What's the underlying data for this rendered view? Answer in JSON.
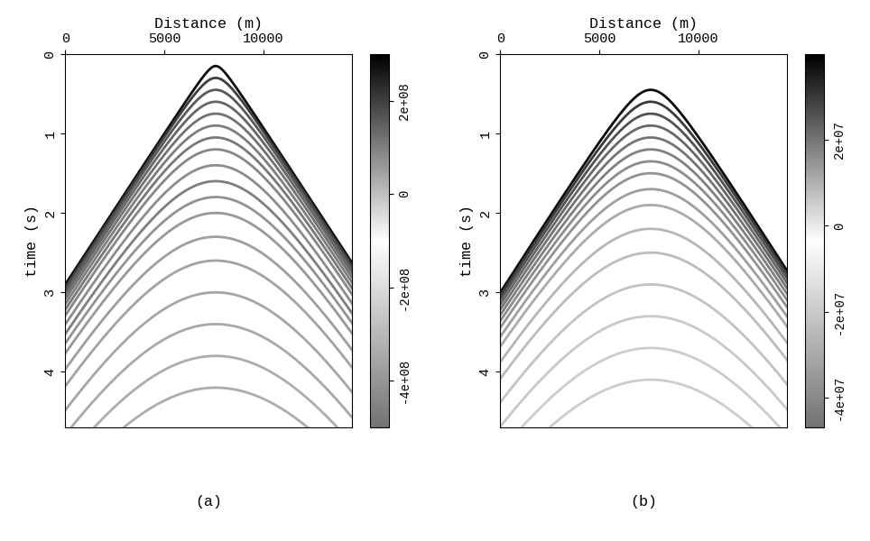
{
  "chart_data": [
    {
      "type": "hyperbola",
      "title": "(a)",
      "x_label": "Distance (m)",
      "y_label": "time (s)",
      "xlim": [
        0,
        14500
      ],
      "xticks": [
        0,
        5000,
        10000
      ],
      "ylim": [
        4.7,
        0
      ],
      "yticks": [
        0,
        1,
        2,
        3,
        4
      ],
      "source_x": 7600,
      "colorbar": {
        "range": [
          -500000000.0,
          300000000.0
        ],
        "ticks": [
          {
            "value": 200000000.0,
            "label": "2e+08"
          },
          0,
          {
            "value": -200000000.0,
            "label": "-2e+08"
          },
          {
            "value": -400000000.0,
            "label": "-4e+08"
          }
        ]
      },
      "events": [
        {
          "t0": 0.15,
          "velocity": 2624,
          "amplitude": 280000000.0
        },
        {
          "t0": 0.3,
          "velocity": 2600,
          "amplitude": 200000000.0
        },
        {
          "t0": 0.45,
          "velocity": 2580,
          "amplitude": 160000000.0
        },
        {
          "t0": 0.6,
          "velocity": 2560,
          "amplitude": 140000000.0
        },
        {
          "t0": 0.75,
          "velocity": 2540,
          "amplitude": 120000000.0
        },
        {
          "t0": 0.9,
          "velocity": 2520,
          "amplitude": 100000000.0
        },
        {
          "t0": 1.05,
          "velocity": 2500,
          "amplitude": 110000000.0
        },
        {
          "t0": 1.2,
          "velocity": 2480,
          "amplitude": 90000000.0
        },
        {
          "t0": 1.4,
          "velocity": 2450,
          "amplitude": 80000000.0
        },
        {
          "t0": 1.6,
          "velocity": 2420,
          "amplitude": 100000000.0
        },
        {
          "t0": 1.8,
          "velocity": 2400,
          "amplitude": 70000000.0
        },
        {
          "t0": 2.0,
          "velocity": 2380,
          "amplitude": 60000000.0
        },
        {
          "t0": 2.3,
          "velocity": 2350,
          "amplitude": 50000000.0
        },
        {
          "t0": 2.6,
          "velocity": 2320,
          "amplitude": 45000000.0
        },
        {
          "t0": 3.0,
          "velocity": 2280,
          "amplitude": 40000000.0
        },
        {
          "t0": 3.4,
          "velocity": 2250,
          "amplitude": 35000000.0
        },
        {
          "t0": 3.8,
          "velocity": 2220,
          "amplitude": 30000000.0
        },
        {
          "t0": 4.2,
          "velocity": 2200,
          "amplitude": 30000000.0
        }
      ]
    },
    {
      "type": "hyperbola",
      "title": "(b)",
      "x_label": "Distance (m)",
      "y_label": "time (s)",
      "xlim": [
        0,
        14500
      ],
      "xticks": [
        0,
        5000,
        10000
      ],
      "ylim": [
        4.7,
        0
      ],
      "yticks": [
        0,
        1,
        2,
        3,
        4
      ],
      "source_x": 7600,
      "colorbar": {
        "range": [
          -47000000.0,
          40000000.0
        ],
        "ticks": [
          {
            "value": 20000000.0,
            "label": "2e+07"
          },
          0,
          {
            "value": -20000000.0,
            "label": "-2e+07"
          },
          {
            "value": -40000000.0,
            "label": "-4e+07"
          }
        ]
      },
      "events": [
        {
          "t0": 0.45,
          "velocity": 2560,
          "amplitude": 38000000.0
        },
        {
          "t0": 0.6,
          "velocity": 2545,
          "amplitude": 30000000.0
        },
        {
          "t0": 0.75,
          "velocity": 2530,
          "amplitude": 26000000.0
        },
        {
          "t0": 0.9,
          "velocity": 2515,
          "amplitude": 22000000.0
        },
        {
          "t0": 1.05,
          "velocity": 2500,
          "amplitude": 20000000.0
        },
        {
          "t0": 1.2,
          "velocity": 2485,
          "amplitude": 18000000.0
        },
        {
          "t0": 1.35,
          "velocity": 2470,
          "amplitude": 16000000.0
        },
        {
          "t0": 1.5,
          "velocity": 2450,
          "amplitude": 15000000.0
        },
        {
          "t0": 1.7,
          "velocity": 2430,
          "amplitude": 13000000.0
        },
        {
          "t0": 1.9,
          "velocity": 2410,
          "amplitude": 11000000.0
        },
        {
          "t0": 2.2,
          "velocity": 2380,
          "amplitude": 9000000.0
        },
        {
          "t0": 2.5,
          "velocity": 2350,
          "amplitude": 8000000.0
        },
        {
          "t0": 2.9,
          "velocity": 2310,
          "amplitude": 7000000.0
        },
        {
          "t0": 3.3,
          "velocity": 2280,
          "amplitude": 6000000.0
        },
        {
          "t0": 3.7,
          "velocity": 2250,
          "amplitude": 5000000.0
        },
        {
          "t0": 4.1,
          "velocity": 2220,
          "amplitude": 5000000.0
        }
      ]
    }
  ]
}
